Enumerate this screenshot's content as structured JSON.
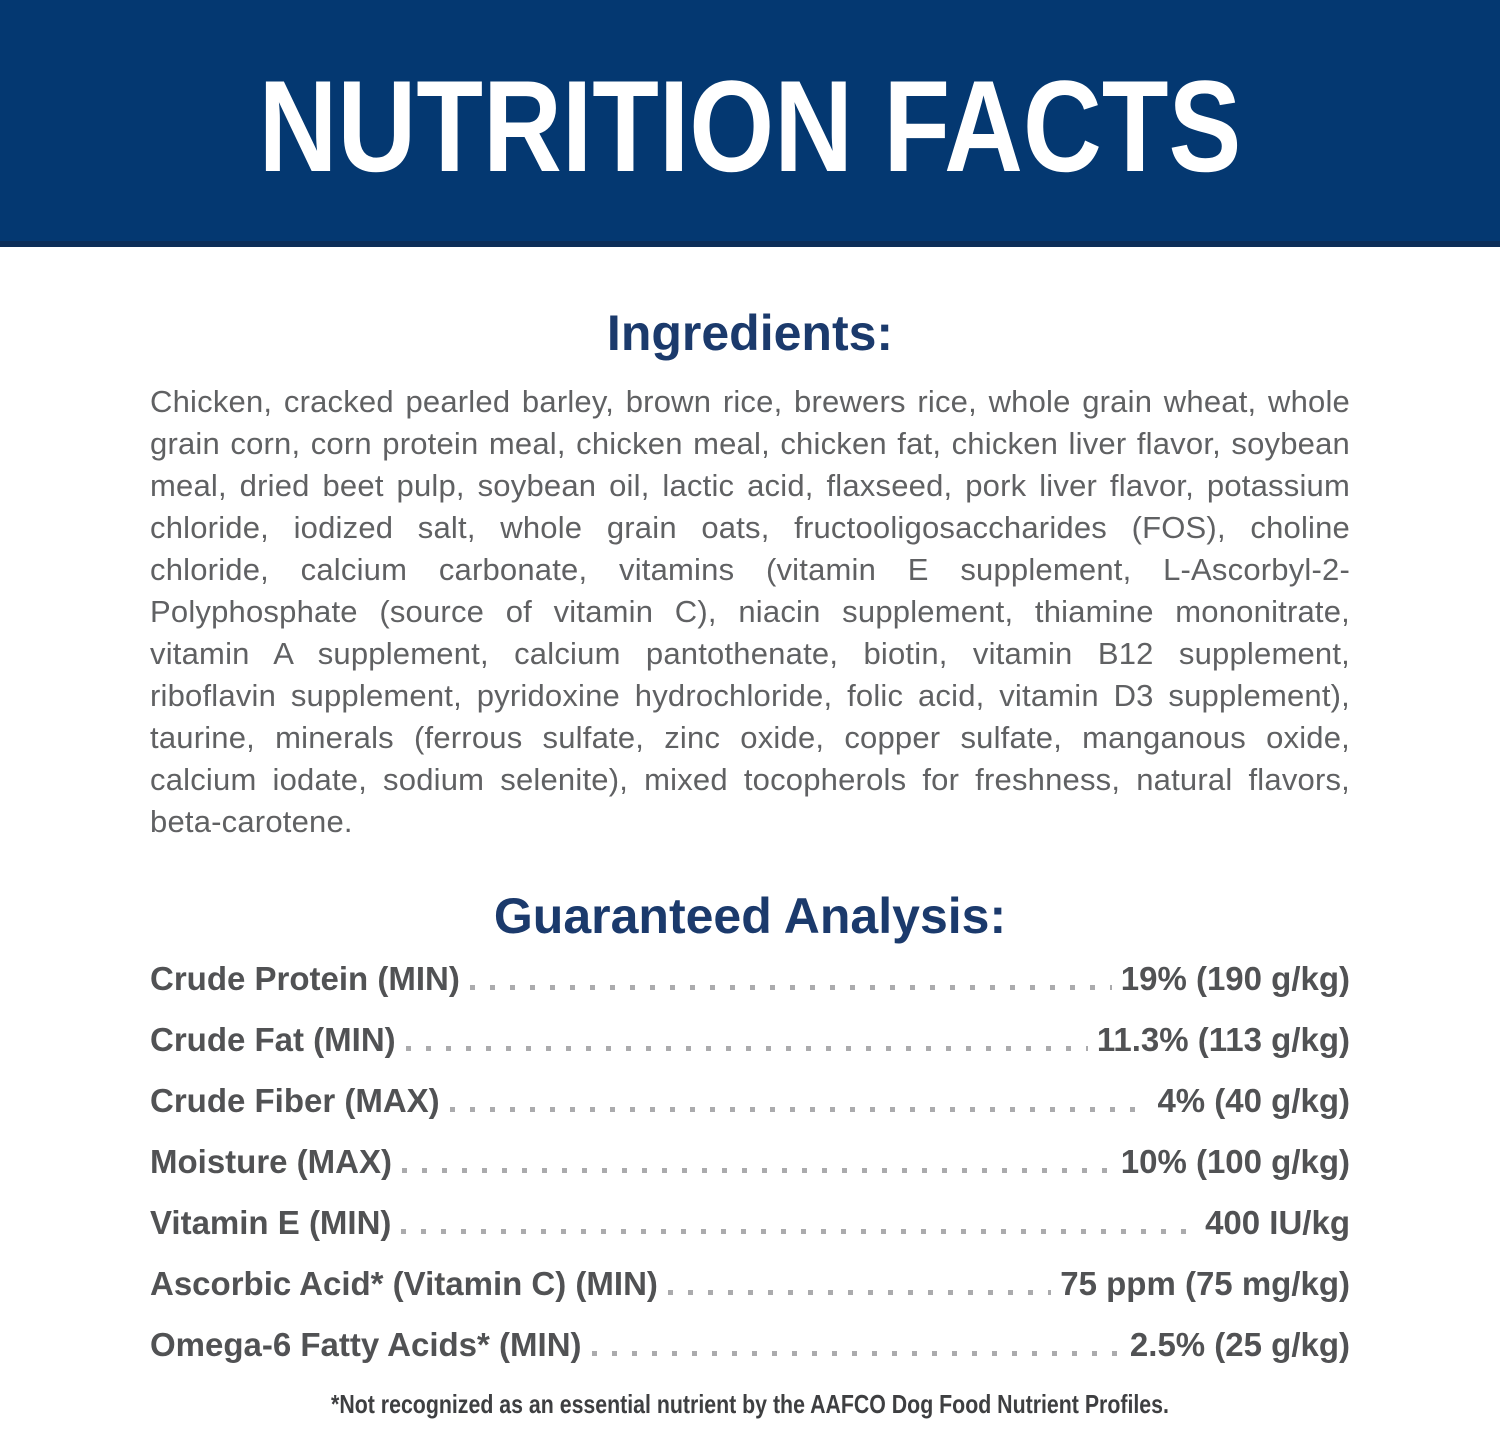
{
  "banner": {
    "title": "NUTRITION FACTS"
  },
  "ingredients": {
    "heading": "Ingredients:",
    "text": "Chicken, cracked pearled barley, brown rice, brewers rice, whole grain wheat, whole grain corn, corn protein meal, chicken meal, chicken fat, chicken liver flavor, soybean meal, dried beet pulp, soybean oil, lactic acid, flaxseed, pork liver flavor, potassium chloride, iodized salt, whole grain oats, fructooligosaccharides (FOS), choline chloride, calcium carbonate, vitamins (vitamin E supplement, L-Ascorbyl-2-Polyphosphate (source of vitamin C), niacin supplement, thiamine mononitrate, vitamin A supplement, calcium pantothenate, biotin, vitamin B12 supplement, riboflavin supplement, pyridoxine hydrochloride, folic acid, vitamin D3 supplement), taurine, minerals (ferrous sulfate, zinc oxide, copper sulfate, manganous oxide, calcium iodate, sodium selenite), mixed tocopherols for freshness, natural flavors, beta-carotene."
  },
  "guaranteed_analysis": {
    "heading": "Guaranteed Analysis:",
    "rows": [
      {
        "label": "Crude Protein (MIN)",
        "value": "19% (190 g/kg)"
      },
      {
        "label": "Crude Fat (MIN)",
        "value": "11.3% (113 g/kg)"
      },
      {
        "label": "Crude Fiber (MAX)",
        "value": "4% (40 g/kg)"
      },
      {
        "label": "Moisture (MAX)",
        "value": "10% (100 g/kg)"
      },
      {
        "label": "Vitamin E (MIN)",
        "value": "400 IU/kg"
      },
      {
        "label": "Ascorbic Acid* (Vitamin C) (MIN)",
        "value": "75 ppm (75 mg/kg)"
      },
      {
        "label": "Omega-6 Fatty Acids* (MIN)",
        "value": "2.5% (25 g/kg)"
      }
    ]
  },
  "footnote": "*Not recognized as an essential nutrient by the AAFCO Dog Food Nutrient Profiles.",
  "colors": {
    "banner_background": "#043871",
    "banner_border": "#0c2d58",
    "heading_navy": "#1b3a6c",
    "body_gray": "#606163",
    "row_gray": "#515254",
    "dot_gray": "#ababad",
    "footnote_gray": "#3e3f41"
  }
}
